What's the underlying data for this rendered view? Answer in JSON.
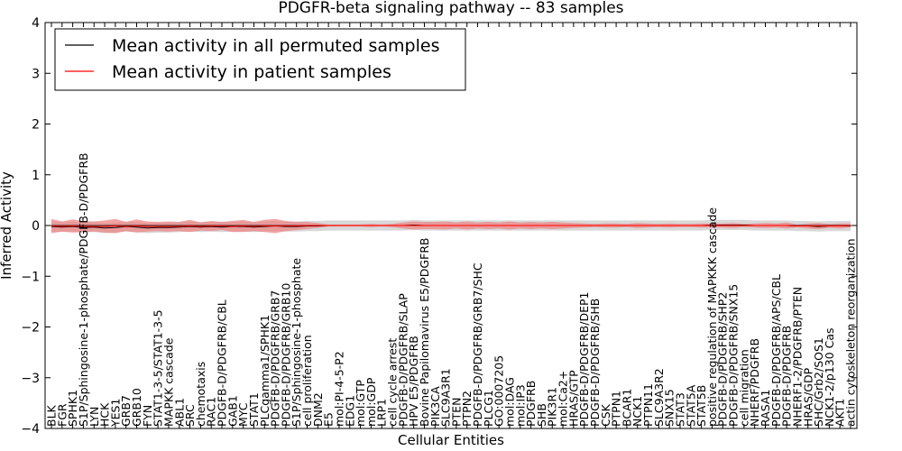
{
  "chart_data": {
    "type": "line",
    "title": "PDGFR-beta signaling pathway -- 83 samples",
    "xlabel": "Cellular Entities",
    "ylabel": "Inferred Activity",
    "ylim": [
      -4,
      4
    ],
    "yticks": [
      "−4",
      "−3",
      "−2",
      "−1",
      "0",
      "1",
      "2",
      "3",
      "4"
    ],
    "grid": false,
    "legend": {
      "placement": "top-left",
      "entries": [
        {
          "label": "Mean activity in all permuted samples",
          "color": "#000000"
        },
        {
          "label": "Mean activity in patient samples",
          "color": "#ff0000"
        }
      ]
    },
    "colors": {
      "permuted_line": "#000000",
      "permuted_band": "#c8c8c8",
      "patient_line": "#ff0000",
      "patient_band": "#f08080"
    },
    "categories": [
      "BLK",
      "FGR",
      "SPHK1",
      "S1P/Sphingosine-1-phosphate/PDGFB-D/PDGFRB",
      "LYN",
      "HCK",
      "YES1",
      "GRB7",
      "GRB10",
      "FYN",
      "STAT1-3-5/STAT1-3-5",
      "MAPKK cascade",
      "ABL1",
      "SRC",
      "chemotaxis",
      "RAC1",
      "PDGFB-D/PDGFRB/CBL",
      "GAB1",
      "MYC",
      "STAT1",
      "PLCgamma1/SPHK1",
      "PDGFB-D/PDGFRB/GRB7",
      "PDGFB-D/PDGFRB/GRB10",
      "S1P/Sphingosine-1-phosphate",
      "cell proliferation",
      "DNM2",
      "E5",
      "mol:PI-4-5-P2",
      "EDG1",
      "mol:GTP",
      "mol:GDP",
      "LRP1",
      "cell cycle arrest",
      "PDGFB-D/PDGFRB/SLAP",
      "HPV E5/PDGFRB",
      "Bovine Papilomavirus E5/PDGFRB",
      "PIK3CA",
      "SLC9A3R1",
      "PTEN",
      "PTPN2",
      "PDGFB-D/PDGFRB/GRB7/SHC",
      "PLCG1",
      "GO:0007205",
      "mol:DAG",
      "mol:IP3",
      "PDGFRB",
      "SHB",
      "PIK3R1",
      "mol:Ca2+",
      "HRAS/GTP",
      "PDGFB-D/PDGFRB/DEP1",
      "PDGFB-D/PDGFRB/SHB",
      "CSK",
      "PTPN1",
      "BCAR1",
      "NCK1",
      "PTPN11",
      "SLC9A3R2",
      "SNX15",
      "STAT3",
      "STAT5A",
      "STAT5B",
      "positive regulation of MAPKKK cascade",
      "PDGFB-D/PDGFRB/SHP2",
      "PDGFB-D/PDGFRB/SNX15",
      "cell migration",
      "NHERF/PDGFRB",
      "RASA1",
      "PDGFB-D/PDGFRB/APS/CBL",
      "PDGFB-D/PDGFRB",
      "NHERF1-2/PDGFRB/PTEN",
      "HRAS/GDP",
      "SHC/Grb2/SOS1",
      "NCK1-2/p130 Cas",
      "AKT1",
      "actin cytoskeleton reorganization"
    ],
    "series": [
      {
        "name": "Mean activity in all permuted samples",
        "values": [
          -0.02,
          -0.03,
          -0.02,
          -0.04,
          -0.03,
          -0.05,
          -0.04,
          -0.02,
          -0.03,
          -0.05,
          -0.04,
          -0.04,
          -0.03,
          -0.02,
          -0.03,
          -0.02,
          -0.03,
          -0.02,
          -0.02,
          -0.03,
          -0.02,
          -0.01,
          -0.02,
          -0.02,
          -0.01,
          -0.01,
          0.0,
          0.0,
          0.0,
          0.0,
          0.0,
          0.0,
          0.0,
          0.0,
          0.01,
          0.0,
          0.0,
          0.0,
          0.0,
          0.0,
          0.0,
          0.0,
          0.0,
          0.0,
          0.0,
          0.0,
          0.0,
          0.0,
          0.0,
          0.0,
          0.0,
          0.0,
          0.0,
          0.0,
          0.0,
          0.0,
          0.0,
          0.0,
          0.0,
          0.0,
          0.0,
          0.0,
          0.01,
          0.01,
          0.01,
          0.01,
          0.0,
          0.0,
          0.0,
          0.0,
          -0.01,
          -0.01,
          -0.02,
          -0.01,
          -0.01,
          -0.01
        ]
      },
      {
        "name": "Mean activity in patient samples",
        "values": [
          -0.01,
          -0.02,
          -0.01,
          -0.02,
          -0.02,
          -0.02,
          -0.01,
          -0.02,
          -0.01,
          -0.02,
          -0.02,
          -0.02,
          -0.02,
          -0.01,
          -0.02,
          -0.01,
          -0.01,
          -0.02,
          -0.01,
          -0.02,
          -0.01,
          -0.01,
          -0.01,
          -0.01,
          0.0,
          0.0,
          0.0,
          0.0,
          0.0,
          0.0,
          0.0,
          0.0,
          0.0,
          0.0,
          0.0,
          0.0,
          0.0,
          0.0,
          0.0,
          0.0,
          0.0,
          0.0,
          0.0,
          0.0,
          0.0,
          0.0,
          0.0,
          0.0,
          0.0,
          0.0,
          0.0,
          0.0,
          0.0,
          0.0,
          0.0,
          0.0,
          0.0,
          0.0,
          0.0,
          0.0,
          0.0,
          0.0,
          0.0,
          0.0,
          0.0,
          0.0,
          0.0,
          0.0,
          0.0,
          0.0,
          -0.01,
          -0.01,
          -0.01,
          -0.01,
          -0.01,
          0.0
        ]
      }
    ],
    "permuted_band_halfwidth": [
      0.1,
      0.1,
      0.1,
      0.1,
      0.1,
      0.1,
      0.1,
      0.1,
      0.1,
      0.1,
      0.1,
      0.1,
      0.1,
      0.1,
      0.1,
      0.1,
      0.1,
      0.1,
      0.1,
      0.1,
      0.1,
      0.1,
      0.1,
      0.1,
      0.1,
      0.1,
      0.1,
      0.1,
      0.1,
      0.1,
      0.1,
      0.1,
      0.1,
      0.1,
      0.1,
      0.1,
      0.1,
      0.1,
      0.1,
      0.1,
      0.1,
      0.1,
      0.1,
      0.1,
      0.1,
      0.1,
      0.1,
      0.1,
      0.1,
      0.1,
      0.1,
      0.1,
      0.1,
      0.1,
      0.1,
      0.1,
      0.1,
      0.1,
      0.1,
      0.1,
      0.1,
      0.1,
      0.1,
      0.1,
      0.1,
      0.1,
      0.1,
      0.1,
      0.1,
      0.1,
      0.1,
      0.1,
      0.1,
      0.1,
      0.1,
      0.1
    ],
    "patient_band_halfwidth": [
      0.14,
      0.1,
      0.13,
      0.11,
      0.1,
      0.12,
      0.14,
      0.09,
      0.13,
      0.1,
      0.09,
      0.1,
      0.09,
      0.12,
      0.08,
      0.1,
      0.08,
      0.11,
      0.12,
      0.09,
      0.12,
      0.14,
      0.1,
      0.08,
      0.07,
      0.05,
      0.02,
      0.02,
      0.02,
      0.02,
      0.03,
      0.02,
      0.03,
      0.06,
      0.08,
      0.07,
      0.07,
      0.08,
      0.06,
      0.08,
      0.06,
      0.07,
      0.06,
      0.08,
      0.06,
      0.07,
      0.06,
      0.07,
      0.06,
      0.05,
      0.04,
      0.03,
      0.04,
      0.04,
      0.03,
      0.05,
      0.04,
      0.03,
      0.04,
      0.03,
      0.03,
      0.04,
      0.04,
      0.04,
      0.05,
      0.03,
      0.04,
      0.05,
      0.04,
      0.06,
      0.03,
      0.05,
      0.06,
      0.04,
      0.05,
      0.04
    ]
  }
}
